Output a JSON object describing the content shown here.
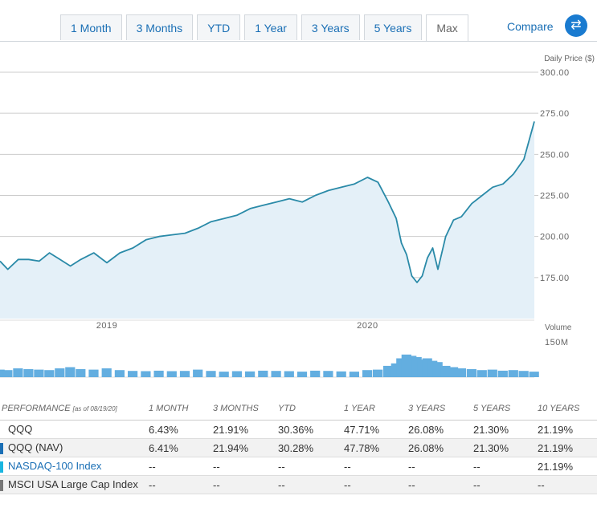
{
  "tabs": [
    "1 Month",
    "3 Months",
    "YTD",
    "1 Year",
    "3 Years",
    "5 Years",
    "Max"
  ],
  "active_tab": "Max",
  "compare_label": "Compare",
  "colors": {
    "line": "#2a8aa8",
    "area": "#e4f0f8",
    "volume": "#63aee0",
    "nav_swatch": "#1a6fb5",
    "index_swatch": "#19b5e0",
    "msci_swatch": "#777777"
  },
  "chart_data": {
    "type": "area",
    "ylabel": "Daily Price ($)",
    "ylim": [
      150,
      300
    ],
    "y_ticks": [
      "300.00",
      "275.00",
      "250.00",
      "225.00",
      "200.00",
      "175.00"
    ],
    "y_tick_values": [
      300,
      275,
      250,
      225,
      200,
      175
    ],
    "x_ticks": [
      "2019",
      "2020"
    ],
    "x_tick_values": [
      2019.0,
      2020.0
    ],
    "xlim": [
      2018.59,
      2020.64
    ],
    "series": [
      {
        "x": [
          2018.59,
          2018.62,
          2018.66,
          2018.7,
          2018.74,
          2018.78,
          2018.82,
          2018.86,
          2018.9,
          2018.95,
          2019.0,
          2019.05,
          2019.1,
          2019.15,
          2019.2,
          2019.25,
          2019.3,
          2019.35,
          2019.4,
          2019.45,
          2019.5,
          2019.55,
          2019.6,
          2019.65,
          2019.7,
          2019.75,
          2019.8,
          2019.85,
          2019.9,
          2019.95,
          2020.0,
          2020.04,
          2020.08,
          2020.11,
          2020.13,
          2020.15,
          2020.17,
          2020.19,
          2020.21,
          2020.23,
          2020.25,
          2020.27,
          2020.3,
          2020.33,
          2020.36,
          2020.4,
          2020.44,
          2020.48,
          2020.52,
          2020.56,
          2020.6,
          2020.64
        ],
        "values": [
          185,
          180,
          186,
          186,
          185,
          190,
          186,
          182,
          186,
          190,
          184,
          190,
          193,
          198,
          200,
          201,
          202,
          205,
          209,
          211,
          213,
          217,
          219,
          221,
          223,
          221,
          225,
          228,
          230,
          232,
          236,
          233,
          221,
          211,
          196,
          189,
          176,
          172,
          176,
          187,
          193,
          180,
          200,
          210,
          212,
          220,
          225,
          230,
          232,
          238,
          247,
          270
        ]
      },
      {
        "name": "Volume",
        "x": [
          2018.59,
          2018.62,
          2018.66,
          2018.7,
          2018.74,
          2018.78,
          2018.82,
          2018.86,
          2018.9,
          2018.95,
          2019.0,
          2019.05,
          2019.1,
          2019.15,
          2019.2,
          2019.25,
          2019.3,
          2019.35,
          2019.4,
          2019.45,
          2019.5,
          2019.55,
          2019.6,
          2019.65,
          2019.7,
          2019.75,
          2019.8,
          2019.85,
          2019.9,
          2019.95,
          2020.0,
          2020.04,
          2020.08,
          2020.11,
          2020.13,
          2020.15,
          2020.17,
          2020.19,
          2020.21,
          2020.23,
          2020.25,
          2020.27,
          2020.3,
          2020.33,
          2020.36,
          2020.4,
          2020.44,
          2020.48,
          2020.52,
          2020.56,
          2020.6,
          2020.64
        ],
        "values": [
          30,
          28,
          35,
          32,
          30,
          28,
          35,
          40,
          32,
          30,
          35,
          28,
          25,
          24,
          26,
          24,
          25,
          30,
          25,
          22,
          24,
          23,
          26,
          25,
          24,
          22,
          26,
          25,
          23,
          22,
          28,
          30,
          45,
          55,
          75,
          90,
          85,
          80,
          70,
          75,
          65,
          60,
          45,
          40,
          35,
          32,
          28,
          30,
          26,
          28,
          25,
          22
        ]
      }
    ],
    "volume_label": "Volume",
    "volume_tick": "150M",
    "volume_ylim": [
      0,
      150
    ]
  },
  "performance": {
    "header": {
      "title": "PERFORMANCE",
      "asof": "[as of 08/19/20]",
      "cols": [
        "1 MONTH",
        "3 MONTHS",
        "YTD",
        "1 YEAR",
        "3 YEARS",
        "5 YEARS",
        "10 YEARS"
      ]
    },
    "rows": [
      {
        "name": "QQQ",
        "values": [
          "6.43%",
          "21.91%",
          "30.36%",
          "47.71%",
          "26.08%",
          "21.30%",
          "21.19%"
        ]
      },
      {
        "name": "QQQ (NAV)",
        "values": [
          "6.41%",
          "21.94%",
          "30.28%",
          "47.78%",
          "26.08%",
          "21.30%",
          "21.19%"
        ]
      },
      {
        "name": "NASDAQ-100 Index",
        "values": [
          "--",
          "--",
          "--",
          "--",
          "--",
          "--",
          "21.19%"
        ]
      },
      {
        "name": "MSCI USA Large Cap Index",
        "values": [
          "--",
          "--",
          "--",
          "--",
          "--",
          "--",
          "--"
        ]
      }
    ]
  }
}
